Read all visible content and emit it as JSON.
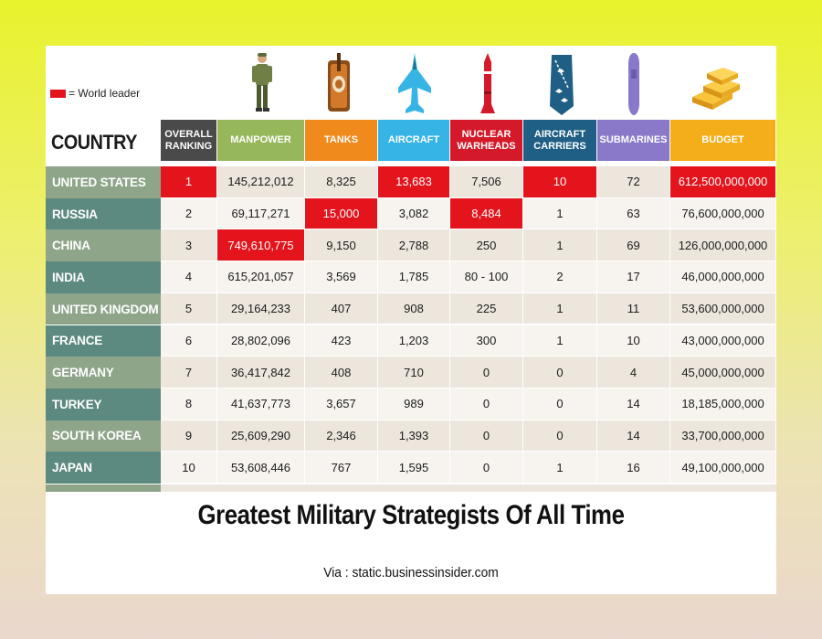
{
  "legend": {
    "label": "= World leader",
    "color": "#e3141c"
  },
  "table": {
    "country_header": "COUNTRY",
    "columns": [
      {
        "key": "rank",
        "label": "OVERALL RANKING",
        "color": "#4a4a4a",
        "icon": ""
      },
      {
        "key": "manpower",
        "label": "MANPOWER",
        "color": "#96b85a",
        "icon": "soldier-icon"
      },
      {
        "key": "tanks",
        "label": "TANKS",
        "color": "#f08a1c",
        "icon": "tank-icon"
      },
      {
        "key": "aircraft",
        "label": "AIRCRAFT",
        "color": "#36b4e6",
        "icon": "fighter-jet-icon"
      },
      {
        "key": "nuclear",
        "label": "NUCLEAR WARHEADS",
        "color": "#d41a2a",
        "icon": "missile-icon"
      },
      {
        "key": "carriers",
        "label": "AIRCRAFT CARRIERS",
        "color": "#1f5f85",
        "icon": "aircraft-carrier-icon"
      },
      {
        "key": "submarines",
        "label": "SUBMARINES",
        "color": "#8a78c8",
        "icon": "submarine-icon"
      },
      {
        "key": "budget",
        "label": "BUDGET",
        "color": "#f4ae1a",
        "icon": "gold-bars-icon"
      }
    ],
    "rows": [
      {
        "country": "UNITED STATES",
        "values": [
          "1",
          "145,212,012",
          "8,325",
          "13,683",
          "7,506",
          "10",
          "72",
          "612,500,000,000"
        ],
        "leaders": [
          0,
          3,
          5,
          7
        ]
      },
      {
        "country": "RUSSIA",
        "values": [
          "2",
          "69,117,271",
          "15,000",
          "3,082",
          "8,484",
          "1",
          "63",
          "76,600,000,000"
        ],
        "leaders": [
          2,
          4
        ]
      },
      {
        "country": "CHINA",
        "values": [
          "3",
          "749,610,775",
          "9,150",
          "2,788",
          "250",
          "1",
          "69",
          "126,000,000,000"
        ],
        "leaders": [
          1
        ]
      },
      {
        "country": "INDIA",
        "values": [
          "4",
          "615,201,057",
          "3,569",
          "1,785",
          "80 - 100",
          "2",
          "17",
          "46,000,000,000"
        ],
        "leaders": []
      },
      {
        "country": "UNITED KINGDOM",
        "values": [
          "5",
          "29,164,233",
          "407",
          "908",
          "225",
          "1",
          "11",
          "53,600,000,000"
        ],
        "leaders": []
      },
      {
        "country": "FRANCE",
        "values": [
          "6",
          "28,802,096",
          "423",
          "1,203",
          "300",
          "1",
          "10",
          "43,000,000,000"
        ],
        "leaders": []
      },
      {
        "country": "GERMANY",
        "values": [
          "7",
          "36,417,842",
          "408",
          "710",
          "0",
          "0",
          "4",
          "45,000,000,000"
        ],
        "leaders": []
      },
      {
        "country": "TURKEY",
        "values": [
          "8",
          "41,637,773",
          "3,657",
          "989",
          "0",
          "0",
          "14",
          "18,185,000,000"
        ],
        "leaders": []
      },
      {
        "country": "SOUTH KOREA",
        "values": [
          "9",
          "25,609,290",
          "2,346",
          "1,393",
          "0",
          "0",
          "14",
          "33,700,000,000"
        ],
        "leaders": []
      },
      {
        "country": "JAPAN",
        "values": [
          "10",
          "53,608,446",
          "767",
          "1,595",
          "0",
          "1",
          "16",
          "49,100,000,000"
        ],
        "leaders": []
      }
    ]
  },
  "title": "Greatest Military Strategists Of All Time",
  "source": "Via : static.businessinsider.com"
}
